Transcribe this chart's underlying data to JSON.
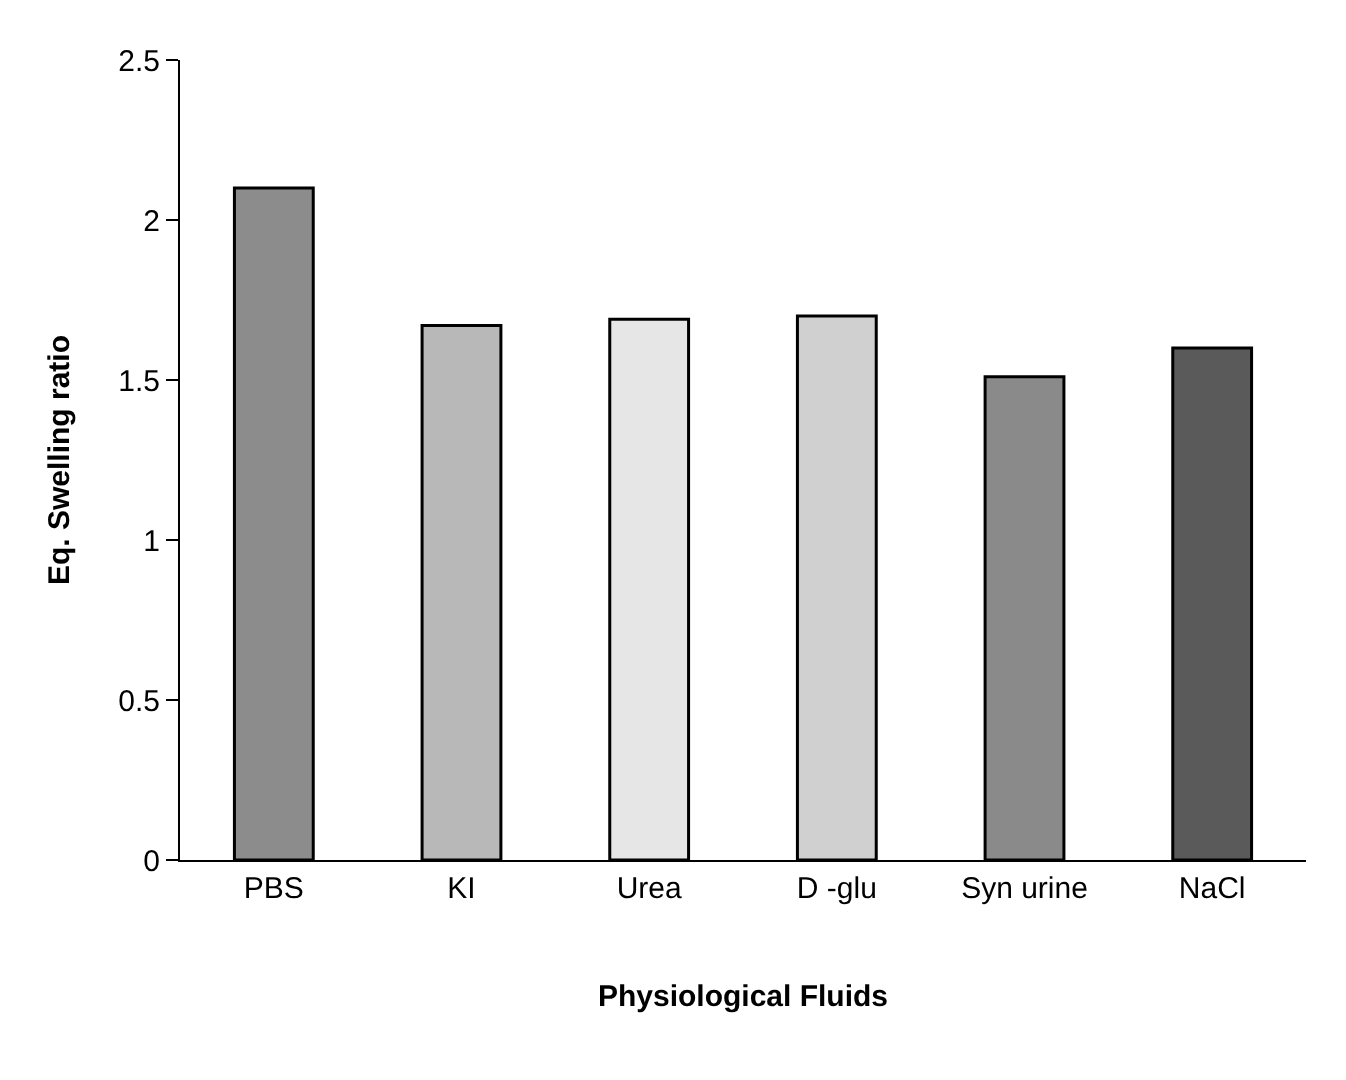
{
  "chart_data": {
    "type": "bar",
    "xlabel": "Physiological Fluids",
    "ylabel": "Eq. Swelling ratio",
    "categories": [
      "PBS",
      "KI",
      "Urea",
      "D -glu",
      "Syn urine",
      "NaCl"
    ],
    "values": [
      2.1,
      1.67,
      1.69,
      1.7,
      1.51,
      1.6
    ],
    "colors": [
      "#8c8c8c",
      "#b8b8b8",
      "#e6e6e6",
      "#d0d0d0",
      "#8a8a8a",
      "#5a5a5a"
    ],
    "ylim": [
      0,
      2.5
    ],
    "yticks": [
      0,
      0.5,
      1,
      1.5,
      2,
      2.5
    ],
    "grid": false
  }
}
